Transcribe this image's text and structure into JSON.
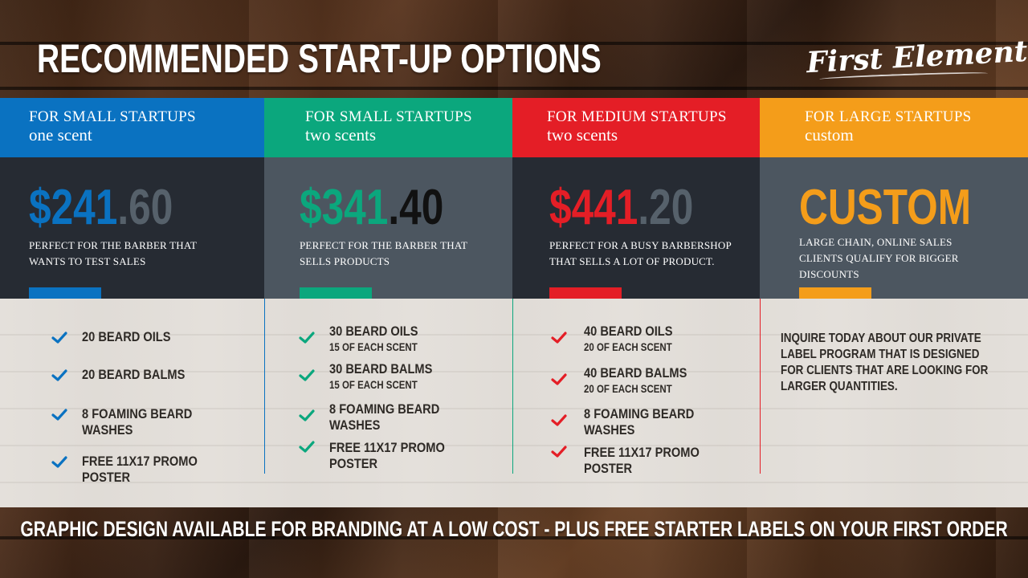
{
  "page": {
    "title": "RECOMMENDED START-UP OPTIONS",
    "brand": "First Element",
    "footer": "GRAPHIC DESIGN AVAILABLE FOR BRANDING AT A LOW COST - PLUS FREE STARTER LABELS ON YOUR FIRST ORDER"
  },
  "colors": {
    "blue": "#0a72c1",
    "green": "#0ba77d",
    "red": "#e41e26",
    "orange": "#f49d1a",
    "body_dark": "#262b33",
    "body_slate": "#4c5660",
    "price_faded": "#56616b"
  },
  "plans": [
    {
      "head_line1": "FOR SMALL STARTUPS",
      "head_line2": "one scent",
      "price_main": "$241",
      "price_cents": ".60",
      "description": "PERFECT FOR THE BARBER THAT WANTS TO TEST SALES",
      "features": [
        {
          "main": "20 BEARD OILS",
          "sub": ""
        },
        {
          "main": "20 BEARD BALMS",
          "sub": ""
        },
        {
          "main": "8 FOAMING BEARD",
          "sub": "WASHES"
        },
        {
          "main": "FREE 11X17 PROMO",
          "sub": "POSTER"
        }
      ]
    },
    {
      "head_line1": "FOR SMALL STARTUPS",
      "head_line2": "two scents",
      "price_main": "$341",
      "price_cents": ".40",
      "description": "PERFECT FOR THE BARBER THAT SELLS PRODUCTS",
      "features": [
        {
          "main": "30 BEARD OILS",
          "sub": "15 OF EACH SCENT"
        },
        {
          "main": "30 BEARD BALMS",
          "sub": "15 OF EACH SCENT"
        },
        {
          "main": "8 FOAMING BEARD",
          "sub": "WASHES"
        },
        {
          "main": "FREE 11X17 PROMO",
          "sub": "POSTER"
        }
      ]
    },
    {
      "head_line1": "FOR MEDIUM STARTUPS",
      "head_line2": "two scents",
      "price_main": "$441",
      "price_cents": ".20",
      "description": "PERFECT FOR A BUSY BARBERSHOP THAT SELLS A LOT OF PRODUCT.",
      "features": [
        {
          "main": "40 BEARD OILS",
          "sub": "20 OF EACH SCENT"
        },
        {
          "main": "40 BEARD BALMS",
          "sub": "20 OF EACH SCENT"
        },
        {
          "main": "8 FOAMING BEARD",
          "sub": "WASHES"
        },
        {
          "main": "FREE 11X17 PROMO",
          "sub": "POSTER"
        }
      ]
    },
    {
      "head_line1": "FOR LARGE STARTUPS",
      "head_line2": "custom",
      "price_main": "CUSTOM",
      "price_cents": "",
      "description": "LARGE CHAIN, ONLINE SALES CLIENTS QUALIFY FOR BIGGER DISCOUNTS",
      "inquire": "INQUIRE TODAY ABOUT OUR PRIVATE LABEL PROGRAM THAT IS DESIGNED FOR CLIENTS THAT ARE LOOKING FOR LARGER QUANTITIES."
    }
  ]
}
